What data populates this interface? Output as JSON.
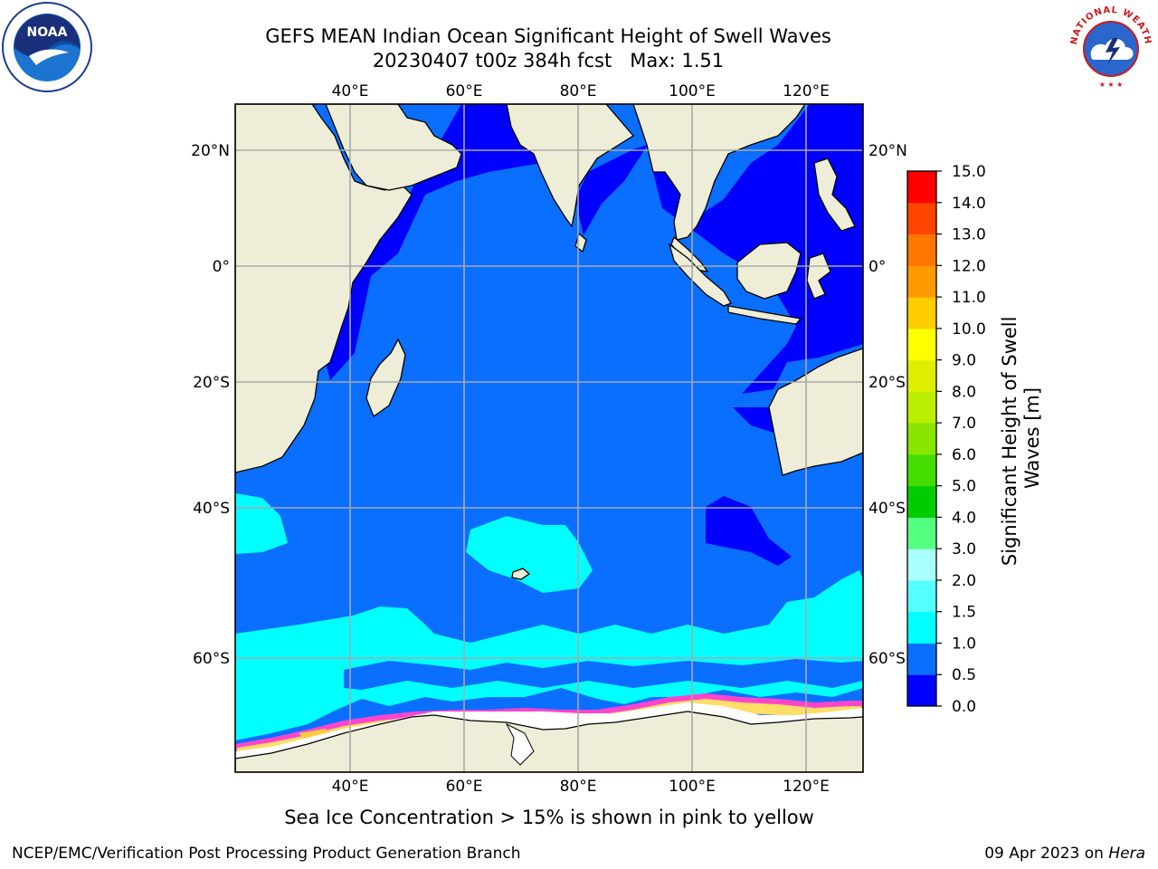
{
  "title": {
    "line1": "GEFS MEAN Indian Ocean Significant Height of Swell Waves",
    "line2": "20230407 t00z 384h fcst   Max: 1.51"
  },
  "logos": {
    "left": "noaa-logo",
    "left_text": "NOAA",
    "right": "nws-logo",
    "right_text": "NATIONAL WEATHER SERVICE"
  },
  "map": {
    "region": "Indian Ocean",
    "lon_ticks": [
      "40°E",
      "60°E",
      "80°E",
      "100°E",
      "120°E"
    ],
    "lat_ticks_left": [
      "20°N",
      "0°",
      "20°S",
      "40°S",
      "60°S"
    ],
    "lat_ticks_right": [
      "20°N",
      "0°",
      "20°S",
      "40°S",
      "60°S"
    ],
    "gridlines": true,
    "colors": {
      "land": "#eeeed8",
      "ice": "#ffffff",
      "coast": "#000000"
    }
  },
  "colorbar": {
    "label": "Significant Height of Swell Waves [m]",
    "ticks": [
      "0.0",
      "0.5",
      "1.0",
      "1.5",
      "2.0",
      "3.0",
      "4.0",
      "5.0",
      "6.0",
      "7.0",
      "8.0",
      "9.0",
      "10.0",
      "11.0",
      "12.0",
      "13.0",
      "14.0",
      "15.0"
    ],
    "colors": [
      "#0000ff",
      "#0a6eff",
      "#00ffff",
      "#55ffff",
      "#aaffff",
      "#55ff80",
      "#00cc00",
      "#44dd00",
      "#88e600",
      "#bbee00",
      "#ddee00",
      "#ffff00",
      "#ffcc00",
      "#ff9900",
      "#ff7700",
      "#ff4400",
      "#ff0000"
    ]
  },
  "caption": "Sea Ice Concentration > 15% is shown in pink to yellow",
  "footer": {
    "left": "NCEP/EMC/Verification Post Processing Product Generation Branch",
    "date": "09 Apr 2023 on ",
    "machine": "Hera"
  }
}
